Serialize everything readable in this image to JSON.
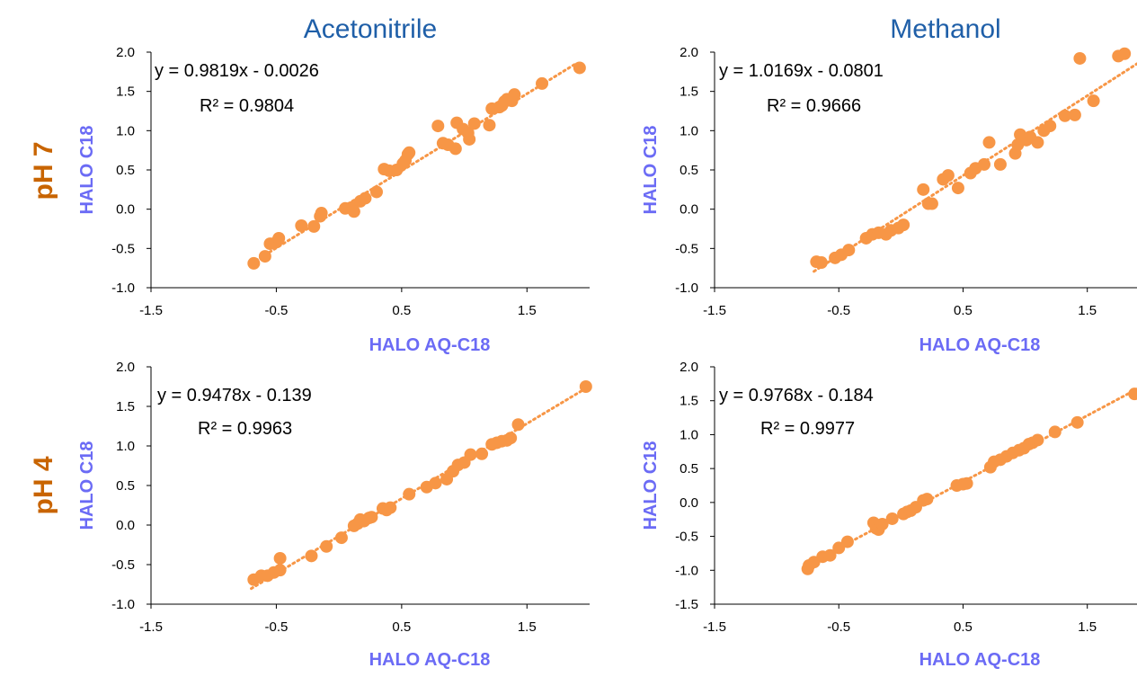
{
  "colors": {
    "series": "#f79646",
    "axis_label": "#6b6bf5",
    "title": "#1f5fa8",
    "row_label": "#c86400",
    "axis": "#000000"
  },
  "column_titles": [
    "Acetonitrile",
    "Methanol"
  ],
  "row_labels": [
    "pH 7",
    "pH 4"
  ],
  "chart_data": [
    {
      "type": "scatter",
      "panel": "top-left",
      "xlabel": "HALO AQ-C18",
      "ylabel": "HALO C18",
      "xlim": [
        -1.5,
        2.0
      ],
      "ylim": [
        -1.0,
        2.0
      ],
      "xticks": [
        "-1.5",
        "-0.5",
        "0.5",
        "1.5"
      ],
      "yticks": [
        "-1.0",
        "-0.5",
        "0.0",
        "0.5",
        "1.0",
        "1.5",
        "2.0"
      ],
      "trendline": {
        "equation": "y = 0.9819x - 0.0026",
        "r2": "R² = 0.9804",
        "slope": 0.9819,
        "intercept": -0.0026,
        "x_range": [
          -0.7,
          1.9
        ]
      },
      "points": [
        [
          -0.68,
          -0.69
        ],
        [
          -0.59,
          -0.6
        ],
        [
          -0.55,
          -0.44
        ],
        [
          -0.5,
          -0.42
        ],
        [
          -0.48,
          -0.37
        ],
        [
          -0.3,
          -0.21
        ],
        [
          -0.2,
          -0.22
        ],
        [
          -0.15,
          -0.09
        ],
        [
          -0.14,
          -0.05
        ],
        [
          0.05,
          0.01
        ],
        [
          0.1,
          0.02
        ],
        [
          0.12,
          -0.03
        ],
        [
          0.17,
          0.1
        ],
        [
          0.21,
          0.14
        ],
        [
          0.3,
          0.22
        ],
        [
          0.36,
          0.51
        ],
        [
          0.4,
          0.49
        ],
        [
          0.46,
          0.5
        ],
        [
          0.51,
          0.58
        ],
        [
          0.53,
          0.62
        ],
        [
          0.55,
          0.7
        ],
        [
          0.56,
          0.72
        ],
        [
          0.79,
          1.06
        ],
        [
          0.83,
          0.84
        ],
        [
          0.87,
          0.82
        ],
        [
          0.93,
          0.77
        ],
        [
          0.94,
          1.1
        ],
        [
          0.99,
          1.02
        ],
        [
          1.03,
          0.97
        ],
        [
          1.04,
          0.89
        ],
        [
          1.08,
          1.09
        ],
        [
          1.2,
          1.07
        ],
        [
          1.22,
          1.28
        ],
        [
          1.28,
          1.3
        ],
        [
          1.3,
          1.32
        ],
        [
          1.32,
          1.37
        ],
        [
          1.34,
          1.4
        ],
        [
          1.38,
          1.38
        ],
        [
          1.4,
          1.46
        ],
        [
          1.62,
          1.6
        ],
        [
          1.92,
          1.8
        ]
      ]
    },
    {
      "type": "scatter",
      "panel": "top-right",
      "xlabel": "HALO AQ-C18",
      "ylabel": "HALO C18",
      "xlim": [
        -1.5,
        1.9
      ],
      "ylim": [
        -1.0,
        2.0
      ],
      "xticks": [
        "-1.5",
        "-0.5",
        "0.5",
        "1.5"
      ],
      "yticks": [
        "-1.0",
        "-0.5",
        "0.0",
        "0.5",
        "1.0",
        "1.5",
        "2.0"
      ],
      "trendline": {
        "equation": "y = 1.0169x - 0.0801",
        "r2": "R² = 0.9666",
        "slope": 1.0169,
        "intercept": -0.0801,
        "x_range": [
          -0.7,
          1.9
        ]
      },
      "points": [
        [
          -0.68,
          -0.67
        ],
        [
          -0.64,
          -0.68
        ],
        [
          -0.53,
          -0.62
        ],
        [
          -0.48,
          -0.58
        ],
        [
          -0.42,
          -0.52
        ],
        [
          -0.28,
          -0.37
        ],
        [
          -0.23,
          -0.32
        ],
        [
          -0.18,
          -0.3
        ],
        [
          -0.12,
          -0.32
        ],
        [
          -0.08,
          -0.27
        ],
        [
          -0.02,
          -0.24
        ],
        [
          0.02,
          -0.2
        ],
        [
          0.18,
          0.25
        ],
        [
          0.22,
          0.07
        ],
        [
          0.25,
          0.07
        ],
        [
          0.34,
          0.38
        ],
        [
          0.38,
          0.43
        ],
        [
          0.46,
          0.27
        ],
        [
          0.56,
          0.46
        ],
        [
          0.6,
          0.52
        ],
        [
          0.67,
          0.57
        ],
        [
          0.71,
          0.85
        ],
        [
          0.8,
          0.57
        ],
        [
          0.92,
          0.71
        ],
        [
          0.94,
          0.82
        ],
        [
          0.96,
          0.95
        ],
        [
          1.01,
          0.88
        ],
        [
          1.04,
          0.92
        ],
        [
          1.1,
          0.85
        ],
        [
          1.15,
          1.0
        ],
        [
          1.2,
          1.06
        ],
        [
          1.32,
          1.19
        ],
        [
          1.4,
          1.2
        ],
        [
          1.44,
          1.92
        ],
        [
          1.55,
          1.38
        ],
        [
          1.75,
          1.95
        ],
        [
          1.8,
          1.98
        ]
      ]
    },
    {
      "type": "scatter",
      "panel": "bottom-left",
      "xlabel": "HALO AQ-C18",
      "ylabel": "HALO C18",
      "xlim": [
        -1.5,
        2.0
      ],
      "ylim": [
        -1.0,
        2.0
      ],
      "xticks": [
        "-1.5",
        "-0.5",
        "0.5",
        "1.5"
      ],
      "yticks": [
        "-1.0",
        "-0.5",
        "0.0",
        "0.5",
        "1.0",
        "1.5",
        "2.0"
      ],
      "trendline": {
        "equation": "y = 0.9478x - 0.139",
        "r2": "R² = 0.9963",
        "slope": 0.9478,
        "intercept": -0.139,
        "x_range": [
          -0.7,
          1.98
        ]
      },
      "points": [
        [
          -0.68,
          -0.69
        ],
        [
          -0.62,
          -0.64
        ],
        [
          -0.57,
          -0.64
        ],
        [
          -0.52,
          -0.6
        ],
        [
          -0.47,
          -0.57
        ],
        [
          -0.47,
          -0.42
        ],
        [
          -0.22,
          -0.39
        ],
        [
          -0.1,
          -0.27
        ],
        [
          0.02,
          -0.16
        ],
        [
          0.12,
          -0.01
        ],
        [
          0.15,
          0.02
        ],
        [
          0.17,
          0.07
        ],
        [
          0.2,
          0.05
        ],
        [
          0.24,
          0.09
        ],
        [
          0.26,
          0.1
        ],
        [
          0.35,
          0.21
        ],
        [
          0.38,
          0.19
        ],
        [
          0.41,
          0.22
        ],
        [
          0.56,
          0.39
        ],
        [
          0.7,
          0.48
        ],
        [
          0.77,
          0.53
        ],
        [
          0.86,
          0.58
        ],
        [
          0.91,
          0.68
        ],
        [
          0.95,
          0.76
        ],
        [
          1.0,
          0.79
        ],
        [
          1.05,
          0.89
        ],
        [
          1.14,
          0.9
        ],
        [
          1.22,
          1.02
        ],
        [
          1.26,
          1.04
        ],
        [
          1.3,
          1.06
        ],
        [
          1.34,
          1.07
        ],
        [
          1.37,
          1.1
        ],
        [
          1.43,
          1.27
        ],
        [
          1.97,
          1.75
        ]
      ]
    },
    {
      "type": "scatter",
      "panel": "bottom-right",
      "xlabel": "HALO AQ-C18",
      "ylabel": "HALO C18",
      "xlim": [
        -1.5,
        1.9
      ],
      "ylim": [
        -1.5,
        2.0
      ],
      "xticks": [
        "-1.5",
        "-0.5",
        "0.5",
        "1.5"
      ],
      "yticks": [
        "-1.5",
        "-1.0",
        "-0.5",
        "0.0",
        "0.5",
        "1.0",
        "1.5",
        "2.0"
      ],
      "trendline": {
        "equation": "y = 0.9768x - 0.184",
        "r2": "R² = 0.9977",
        "slope": 0.9768,
        "intercept": -0.184,
        "x_range": [
          -0.75,
          1.9
        ]
      },
      "points": [
        [
          -0.75,
          -0.98
        ],
        [
          -0.74,
          -0.93
        ],
        [
          -0.7,
          -0.88
        ],
        [
          -0.63,
          -0.8
        ],
        [
          -0.57,
          -0.78
        ],
        [
          -0.5,
          -0.67
        ],
        [
          -0.43,
          -0.58
        ],
        [
          -0.22,
          -0.3
        ],
        [
          -0.2,
          -0.38
        ],
        [
          -0.18,
          -0.4
        ],
        [
          -0.15,
          -0.32
        ],
        [
          -0.07,
          -0.24
        ],
        [
          0.02,
          -0.17
        ],
        [
          0.05,
          -0.14
        ],
        [
          0.08,
          -0.12
        ],
        [
          0.12,
          -0.07
        ],
        [
          0.18,
          0.03
        ],
        [
          0.21,
          0.05
        ],
        [
          0.45,
          0.25
        ],
        [
          0.5,
          0.27
        ],
        [
          0.53,
          0.28
        ],
        [
          0.72,
          0.52
        ],
        [
          0.75,
          0.6
        ],
        [
          0.8,
          0.63
        ],
        [
          0.85,
          0.68
        ],
        [
          0.9,
          0.73
        ],
        [
          0.95,
          0.77
        ],
        [
          0.99,
          0.8
        ],
        [
          1.03,
          0.86
        ],
        [
          1.06,
          0.88
        ],
        [
          1.1,
          0.92
        ],
        [
          1.24,
          1.04
        ],
        [
          1.42,
          1.18
        ],
        [
          1.88,
          1.6
        ]
      ]
    }
  ]
}
